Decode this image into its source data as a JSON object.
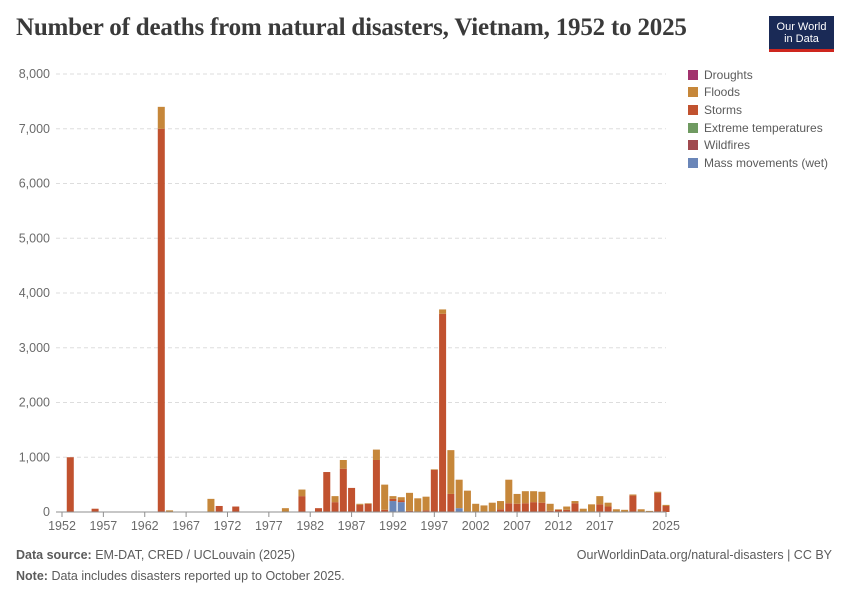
{
  "title": "Number of deaths from natural disasters, Vietnam, 1952 to 2025",
  "logo": {
    "line1": "Our World",
    "line2": "in Data"
  },
  "footer": {
    "source_label": "Data source:",
    "source_text": "EM-DAT, CRED / UCLouvain (2025)",
    "note_label": "Note:",
    "note_text": "Data includes disasters reported up to October 2025.",
    "url": "OurWorldinData.org/natural-disasters | CC BY"
  },
  "colors": {
    "Droughts": "#a2336d",
    "Floods": "#c6873a",
    "Storms": "#c1522f",
    "Extreme temperatures": "#6f9a61",
    "Wildfires": "#a04a4f",
    "Mass movements (wet)": "#6a86b8",
    "grid": "#dddddd",
    "axis": "#8f8f8f",
    "tick_text": "#6b6b6b"
  },
  "chart_data": {
    "type": "bar",
    "stacked": true,
    "xlim": [
      1952,
      2025
    ],
    "ylim": [
      0,
      8000
    ],
    "x_ticks": [
      1952,
      1957,
      1962,
      1967,
      1972,
      1977,
      1982,
      1987,
      1992,
      1997,
      2002,
      2007,
      2012,
      2017,
      2025
    ],
    "y_ticks": [
      0,
      1000,
      2000,
      3000,
      4000,
      5000,
      6000,
      7000,
      8000
    ],
    "y_tick_labels": [
      "0",
      "1,000",
      "2,000",
      "3,000",
      "4,000",
      "5,000",
      "6,000",
      "7,000",
      "8,000"
    ],
    "grid": "horizontal dashed",
    "legend_position": "right",
    "series": [
      {
        "name": "Droughts",
        "data": []
      },
      {
        "name": "Floods",
        "data": [
          [
            1964,
            400
          ],
          [
            1965,
            30
          ],
          [
            1970,
            240
          ],
          [
            1979,
            70
          ],
          [
            1981,
            120
          ],
          [
            1985,
            110
          ],
          [
            1986,
            160
          ],
          [
            1988,
            20
          ],
          [
            1989,
            10
          ],
          [
            1990,
            190
          ],
          [
            1991,
            460
          ],
          [
            1992,
            50
          ],
          [
            1993,
            60
          ],
          [
            1994,
            330
          ],
          [
            1995,
            250
          ],
          [
            1996,
            250
          ],
          [
            1997,
            10
          ],
          [
            1998,
            80
          ],
          [
            1999,
            800
          ],
          [
            2000,
            520
          ],
          [
            2001,
            390
          ],
          [
            2002,
            150
          ],
          [
            2003,
            120
          ],
          [
            2004,
            170
          ],
          [
            2005,
            150
          ],
          [
            2006,
            430
          ],
          [
            2007,
            180
          ],
          [
            2008,
            220
          ],
          [
            2009,
            200
          ],
          [
            2010,
            200
          ],
          [
            2011,
            130
          ],
          [
            2012,
            10
          ],
          [
            2013,
            60
          ],
          [
            2014,
            40
          ],
          [
            2015,
            60
          ],
          [
            2016,
            140
          ],
          [
            2017,
            150
          ],
          [
            2018,
            70
          ],
          [
            2019,
            50
          ],
          [
            2020,
            40
          ],
          [
            2021,
            20
          ],
          [
            2022,
            50
          ],
          [
            2023,
            20
          ],
          [
            2024,
            20
          ],
          [
            2025,
            20
          ]
        ]
      },
      {
        "name": "Storms",
        "data": [
          [
            1953,
            1000
          ],
          [
            1956,
            60
          ],
          [
            1964,
            7000
          ],
          [
            1971,
            110
          ],
          [
            1973,
            100
          ],
          [
            1981,
            290
          ],
          [
            1983,
            70
          ],
          [
            1984,
            730
          ],
          [
            1985,
            180
          ],
          [
            1986,
            790
          ],
          [
            1987,
            440
          ],
          [
            1988,
            130
          ],
          [
            1989,
            150
          ],
          [
            1990,
            950
          ],
          [
            1991,
            40
          ],
          [
            1992,
            40
          ],
          [
            1993,
            30
          ],
          [
            1994,
            20
          ],
          [
            1996,
            30
          ],
          [
            1997,
            770
          ],
          [
            1998,
            3620
          ],
          [
            1999,
            330
          ],
          [
            2005,
            50
          ],
          [
            2006,
            160
          ],
          [
            2007,
            150
          ],
          [
            2008,
            160
          ],
          [
            2009,
            180
          ],
          [
            2010,
            170
          ],
          [
            2011,
            20
          ],
          [
            2012,
            40
          ],
          [
            2013,
            40
          ],
          [
            2014,
            160
          ],
          [
            2017,
            140
          ],
          [
            2018,
            100
          ],
          [
            2021,
            300
          ],
          [
            2024,
            350
          ],
          [
            2025,
            110
          ]
        ]
      },
      {
        "name": "Extreme temperatures",
        "data": []
      },
      {
        "name": "Wildfires",
        "data": []
      },
      {
        "name": "Mass movements (wet)",
        "data": [
          [
            1992,
            200
          ],
          [
            1993,
            180
          ],
          [
            2000,
            70
          ]
        ]
      }
    ]
  }
}
